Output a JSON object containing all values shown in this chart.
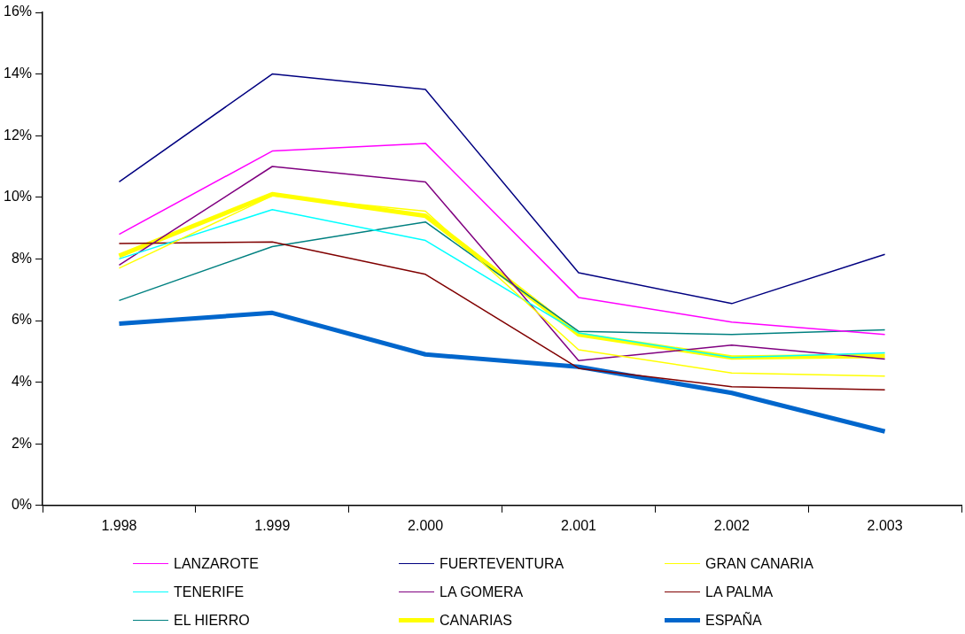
{
  "chart_data": {
    "type": "line",
    "categories": [
      "1.998",
      "1.999",
      "2.000",
      "2.001",
      "2.002",
      "2.003"
    ],
    "ylim": [
      0,
      16
    ],
    "yticks": [
      {
        "value": 0,
        "label": "0%"
      },
      {
        "value": 2,
        "label": "2%"
      },
      {
        "value": 4,
        "label": "4%"
      },
      {
        "value": 6,
        "label": "6%"
      },
      {
        "value": 8,
        "label": "8%"
      },
      {
        "value": 10,
        "label": "10%"
      },
      {
        "value": 12,
        "label": "12%"
      },
      {
        "value": 14,
        "label": "14%"
      },
      {
        "value": 16,
        "label": "16%"
      }
    ],
    "grid": false,
    "legend": "bottom",
    "marker": "none",
    "line_style": "solid",
    "series": [
      {
        "name": "LANZAROTE",
        "color": "#ff00ff",
        "values": [
          8.8,
          11.5,
          11.75,
          6.75,
          5.95,
          5.55
        ]
      },
      {
        "name": "FUERTEVENTURA",
        "color": "#000080",
        "values": [
          10.5,
          14.0,
          13.5,
          7.55,
          6.55,
          8.15
        ]
      },
      {
        "name": "GRAN CANARIA",
        "color": "#ffff00",
        "values": [
          7.7,
          10.05,
          9.55,
          5.05,
          4.3,
          4.2
        ]
      },
      {
        "name": "TENERIFE",
        "color": "#00ffff",
        "values": [
          8.0,
          9.6,
          8.6,
          5.6,
          4.8,
          4.95
        ]
      },
      {
        "name": "LA GOMERA",
        "color": "#800080",
        "values": [
          7.8,
          11.0,
          10.5,
          4.7,
          5.2,
          4.75
        ]
      },
      {
        "name": "LA PALMA",
        "color": "#800000",
        "values": [
          8.5,
          8.55,
          7.5,
          4.45,
          3.85,
          3.75
        ]
      },
      {
        "name": "EL HIERRO",
        "color": "#008080",
        "values": [
          6.65,
          8.4,
          9.2,
          5.65,
          5.55,
          5.7
        ]
      },
      {
        "name": "CANARIAS",
        "color": "#ffff00",
        "values": [
          8.1,
          10.1,
          9.4,
          5.55,
          4.8,
          4.85
        ]
      },
      {
        "name": "ESPAÑA",
        "color": "#0066cc",
        "values": [
          5.9,
          6.25,
          4.9,
          4.5,
          3.65,
          2.4
        ]
      }
    ]
  }
}
